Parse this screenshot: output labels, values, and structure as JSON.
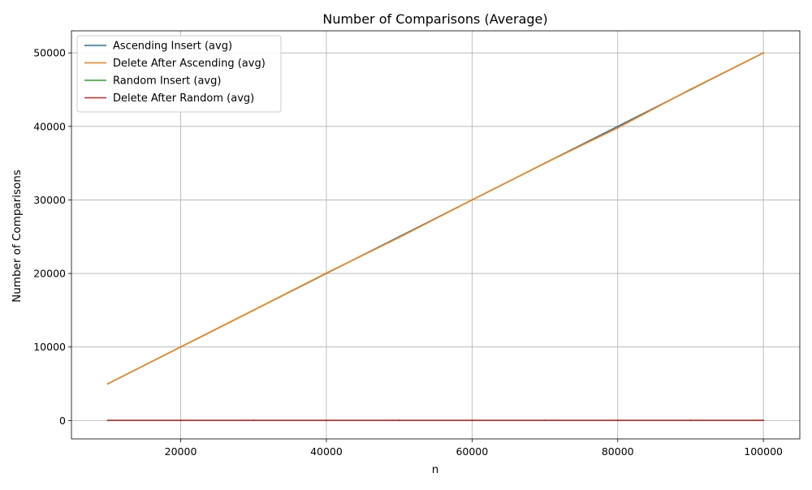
{
  "chart_data": {
    "type": "line",
    "title": "Number of Comparisons (Average)",
    "xlabel": "n",
    "ylabel": "Number of Comparisons",
    "xlim": [
      5000,
      105000
    ],
    "ylim": [
      -2500,
      53000
    ],
    "x_ticks": [
      20000,
      40000,
      60000,
      80000,
      100000
    ],
    "y_ticks": [
      0,
      10000,
      20000,
      30000,
      40000,
      50000
    ],
    "grid": true,
    "legend_position": "upper left",
    "x": [
      10000,
      20000,
      30000,
      40000,
      50000,
      60000,
      70000,
      80000,
      90000,
      100000
    ],
    "series": [
      {
        "name": "Ascending Insert (avg)",
        "color": "#1f77b4",
        "values": [
          4999.5,
          9999.5,
          14999.5,
          19999.5,
          24999.5,
          29999.5,
          34999.5,
          39999.5,
          44999.5,
          49999.5
        ]
      },
      {
        "name": "Delete After Ascending (avg)",
        "color": "#ff7f0e",
        "values": [
          5000,
          10000,
          15000,
          20050,
          24900,
          30000,
          35000,
          39800,
          45050,
          50000
        ]
      },
      {
        "name": "Random Insert (avg)",
        "color": "#2ca02c",
        "values": [
          15,
          17,
          18,
          18,
          19,
          19,
          19,
          20,
          20,
          20
        ]
      },
      {
        "name": "Delete After Random (avg)",
        "color": "#d62728",
        "values": [
          14,
          16,
          17,
          18,
          18,
          19,
          19,
          19,
          20,
          20
        ]
      }
    ]
  }
}
